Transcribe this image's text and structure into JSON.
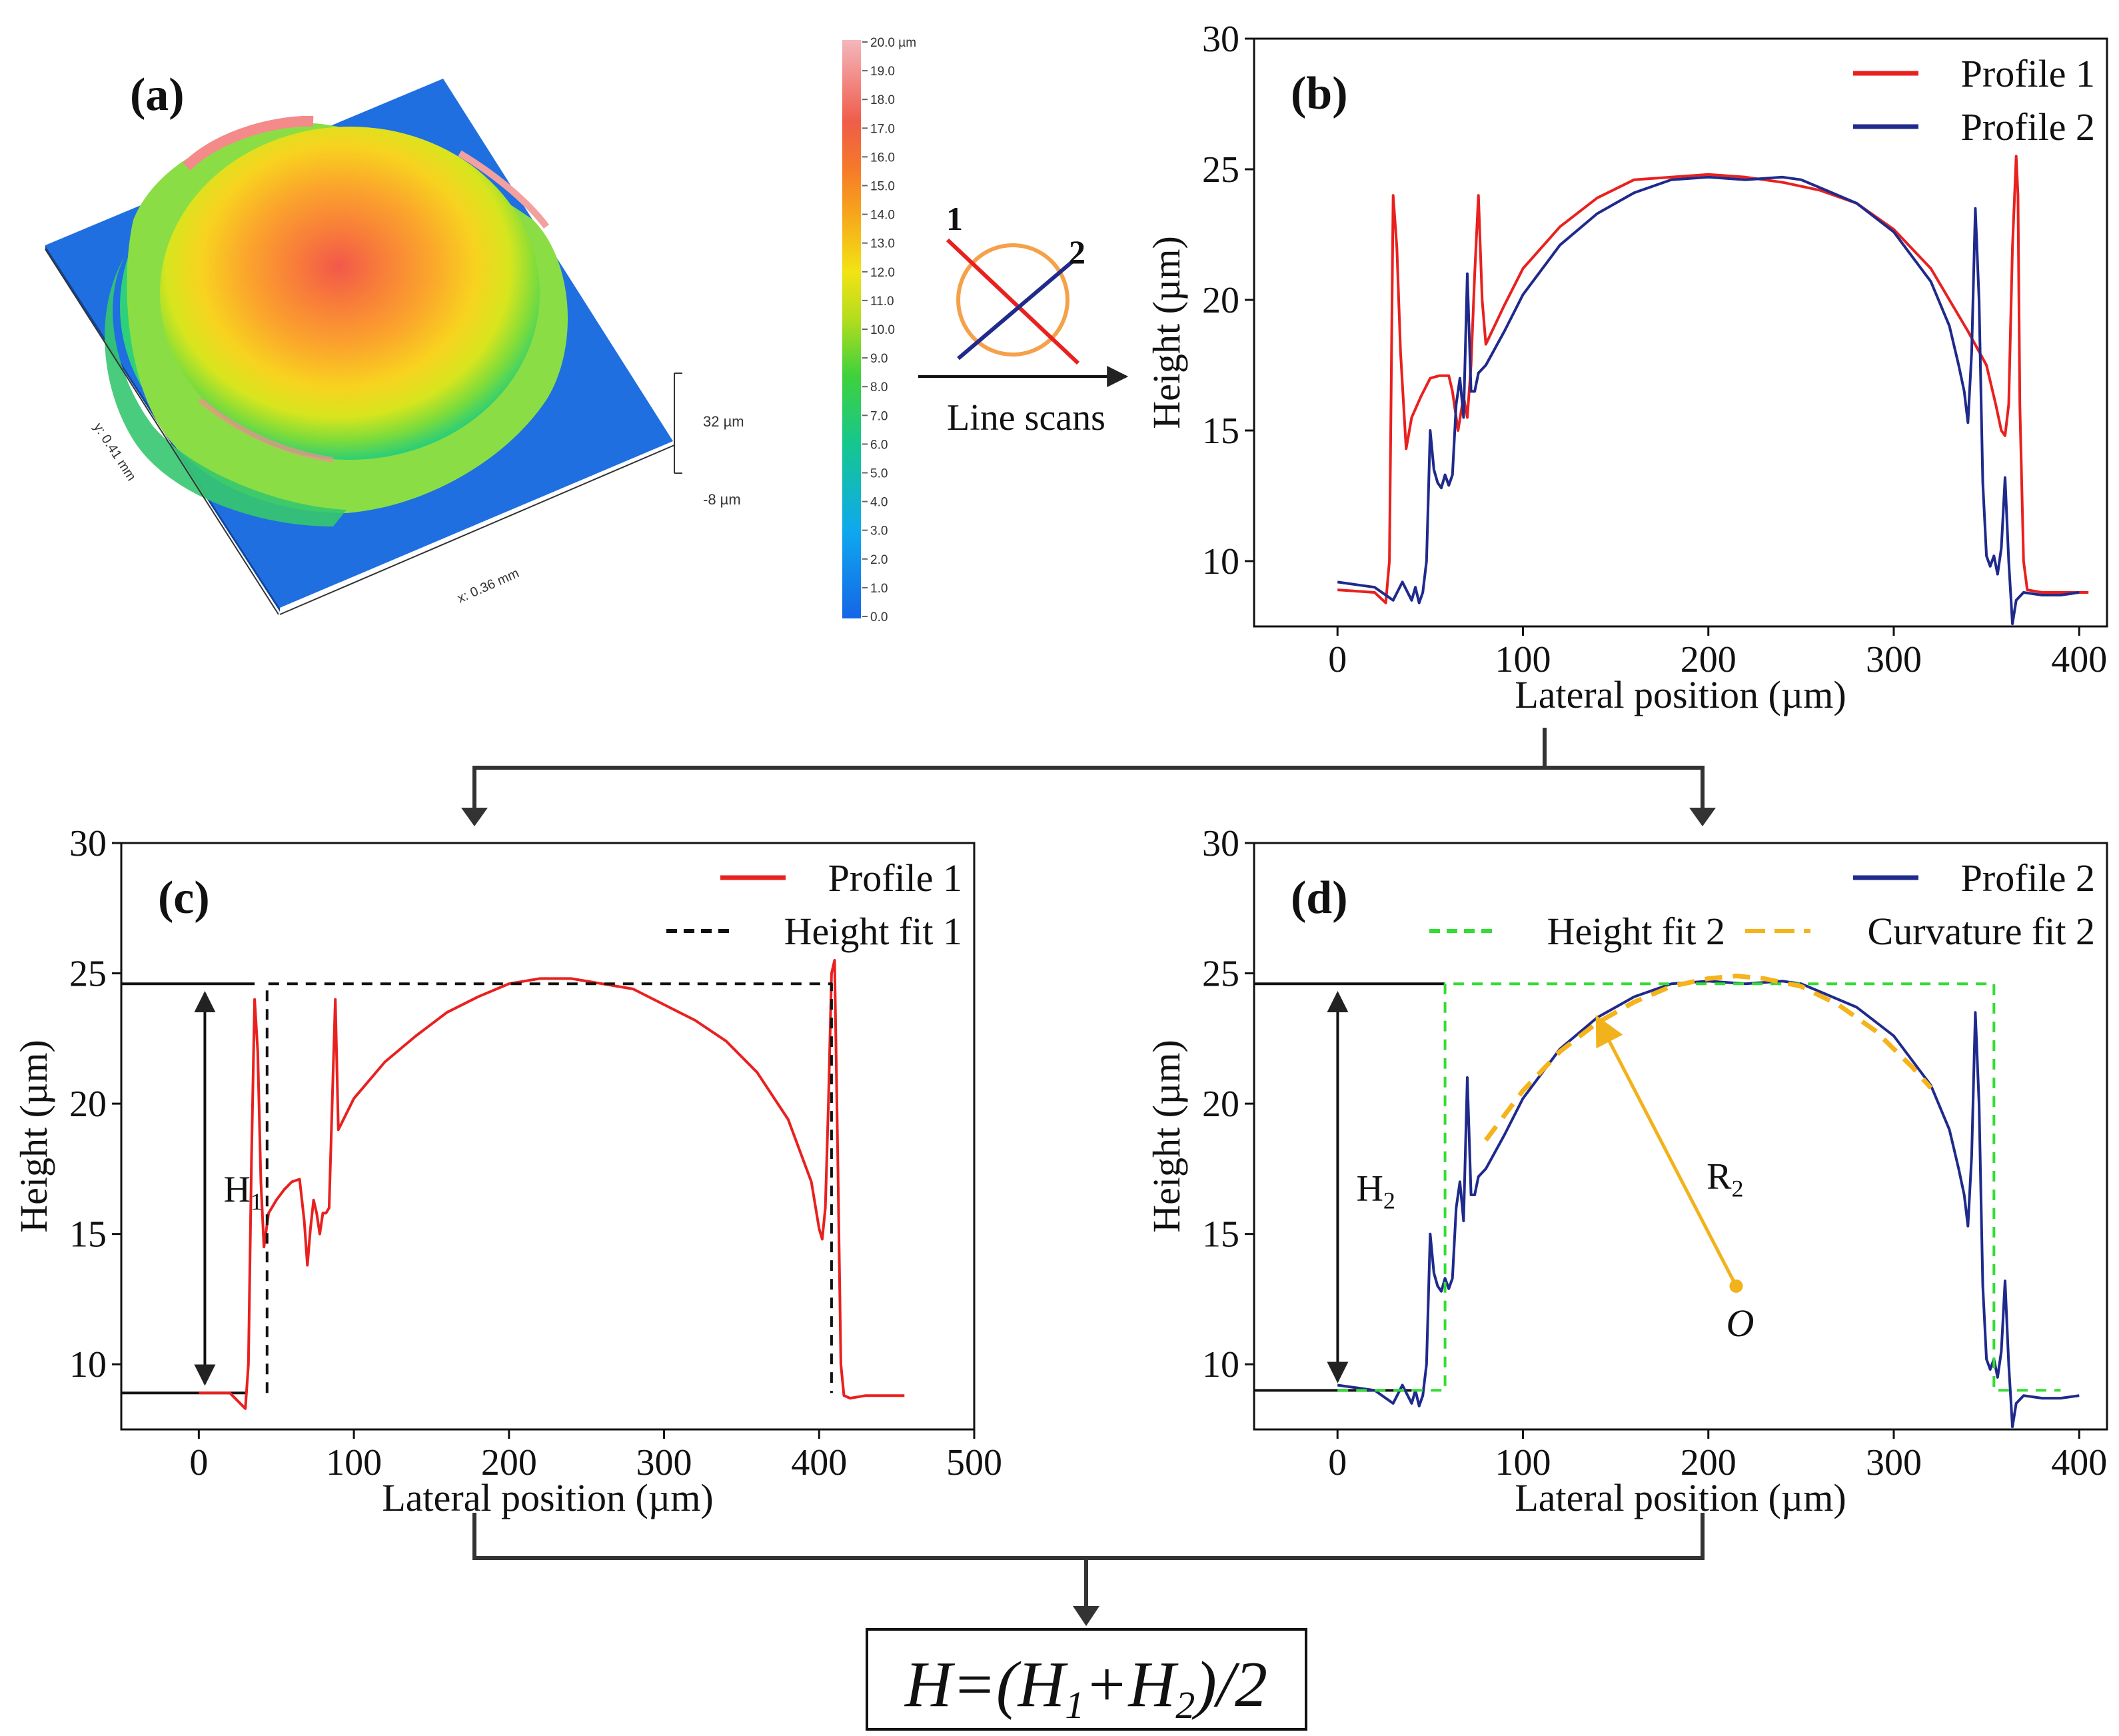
{
  "colors": {
    "profile1": "#e8211f",
    "profile2": "#1f2a8c",
    "height_fit1": "#111111",
    "height_fit2": "#33dd33",
    "curvature_fit2": "#f5b31c",
    "radius_arrow": "#f2b21b"
  },
  "panel_a": {
    "label": "(a)",
    "x_axis": "x: 0.36 mm",
    "y_axis": "y: 0.41 mm",
    "z_top": "32 µm",
    "z_bottom": "-8 µm",
    "colorbar_ticks": [
      "20.0 µm",
      "19.0",
      "18.0",
      "17.0",
      "16.0",
      "15.0",
      "14.0",
      "13.0",
      "12.0",
      "11.0",
      "10.0",
      "9.0",
      "8.0",
      "7.0",
      "6.0",
      "5.0",
      "4.0",
      "3.0",
      "2.0",
      "1.0",
      "0.0"
    ]
  },
  "scan_diagram": {
    "line1": "1",
    "line2": "2",
    "caption": "Line scans"
  },
  "formula": {
    "lhs": "H",
    "eq": "=(",
    "h1": "H",
    "h1_sub": "1",
    "plus": "+",
    "h2": "H",
    "h2_sub": "2",
    "tail": ")/2"
  },
  "chart_data": [
    {
      "panel": "(b)",
      "type": "line",
      "xlabel": "Lateral position (µm)",
      "ylabel": "Height (µm)",
      "xlim": [
        -45,
        415
      ],
      "ylim": [
        7.5,
        30
      ],
      "xticks": [
        0,
        100,
        200,
        300,
        400
      ],
      "yticks": [
        10,
        15,
        20,
        25,
        30
      ],
      "legend": "top-right",
      "series": [
        {
          "name": "Profile 1",
          "color": "profile1",
          "x": [
            0,
            20,
            26,
            28,
            30,
            32,
            34,
            37,
            40,
            45,
            50,
            55,
            60,
            62,
            65,
            68,
            70,
            72,
            74,
            76,
            78,
            80,
            90,
            100,
            120,
            140,
            160,
            180,
            200,
            220,
            240,
            260,
            280,
            300,
            320,
            340,
            350,
            355,
            358,
            360,
            362,
            364,
            366,
            367,
            368,
            370,
            372,
            380,
            390,
            405
          ],
          "y": [
            8.9,
            8.8,
            8.4,
            10,
            24,
            22,
            18,
            14.3,
            15.5,
            16.3,
            17,
            17.1,
            17.1,
            16.5,
            15,
            16.3,
            15.5,
            17.5,
            21,
            24,
            20,
            18.3,
            19.8,
            21.2,
            22.8,
            23.9,
            24.6,
            24.7,
            24.8,
            24.7,
            24.5,
            24.2,
            23.7,
            22.7,
            21.2,
            18.8,
            17.5,
            16,
            15,
            14.8,
            16,
            22,
            25.5,
            24,
            16,
            10,
            8.9,
            8.8,
            8.8,
            8.8
          ]
        },
        {
          "name": "Profile 2",
          "color": "profile2",
          "x": [
            0,
            10,
            20,
            30,
            35,
            40,
            42,
            44,
            46,
            48,
            50,
            52,
            54,
            56,
            58,
            60,
            62,
            64,
            66,
            68,
            70,
            72,
            74,
            76,
            80,
            90,
            100,
            120,
            140,
            160,
            180,
            200,
            220,
            240,
            250,
            260,
            280,
            300,
            320,
            330,
            335,
            338,
            340,
            342,
            344,
            346,
            348,
            350,
            352,
            354,
            356,
            358,
            360,
            362,
            364,
            366,
            370,
            380,
            390,
            400
          ],
          "y": [
            9.2,
            9.1,
            9.0,
            8.5,
            9.2,
            8.5,
            9.0,
            8.4,
            8.8,
            10,
            15,
            13.5,
            13,
            12.8,
            13.3,
            12.9,
            13.3,
            16,
            17,
            15.5,
            21,
            16.5,
            16.5,
            17.2,
            17.5,
            18.8,
            20.2,
            22.1,
            23.3,
            24.1,
            24.6,
            24.7,
            24.6,
            24.7,
            24.6,
            24.3,
            23.7,
            22.6,
            20.7,
            19,
            17.5,
            16.5,
            15.3,
            18,
            23.5,
            20,
            13,
            10.2,
            9.8,
            10.2,
            9.5,
            10.5,
            13.2,
            10,
            7.6,
            8.5,
            8.8,
            8.7,
            8.7,
            8.8
          ]
        }
      ]
    },
    {
      "panel": "(c)",
      "type": "line",
      "xlabel": "Lateral position (µm)",
      "ylabel": "Height (µm)",
      "xlim": [
        -50,
        500
      ],
      "ylim": [
        7.5,
        30
      ],
      "xticks": [
        0,
        100,
        200,
        300,
        400,
        500
      ],
      "yticks": [
        10,
        15,
        20,
        25,
        30
      ],
      "legend": "top-right",
      "series": [
        {
          "name": "Profile 1",
          "color": "profile1",
          "x": [
            0,
            20,
            30,
            32,
            34,
            36,
            38,
            40,
            42,
            45,
            50,
            55,
            60,
            65,
            68,
            70,
            72,
            74,
            76,
            78,
            80,
            82,
            84,
            86,
            88,
            90,
            100,
            120,
            140,
            160,
            180,
            200,
            220,
            240,
            260,
            280,
            300,
            320,
            340,
            360,
            380,
            395,
            400,
            402,
            404,
            406,
            408,
            410,
            412,
            414,
            416,
            420,
            430,
            440,
            455
          ],
          "y": [
            8.9,
            8.9,
            8.3,
            10,
            18,
            24,
            22,
            17,
            14.5,
            15.8,
            16.3,
            16.7,
            17,
            17.1,
            15.5,
            13.8,
            15.2,
            16.3,
            15.8,
            15,
            15.8,
            15.8,
            16,
            20,
            24,
            19,
            20.2,
            21.6,
            22.6,
            23.5,
            24.1,
            24.6,
            24.8,
            24.8,
            24.6,
            24.4,
            23.8,
            23.2,
            22.4,
            21.2,
            19.4,
            17,
            15.2,
            14.8,
            16,
            20,
            25,
            25.5,
            18,
            10,
            8.8,
            8.7,
            8.8,
            8.8,
            8.8
          ]
        },
        {
          "name": "Height fit 1",
          "color": "height_fit1",
          "dash": true,
          "x": [
            44,
            44,
            408,
            408
          ],
          "y": [
            8.9,
            24.6,
            24.6,
            8.9
          ]
        }
      ],
      "annotation": {
        "label": "H",
        "sub": "1",
        "baseline_y": 8.9,
        "top_y": 24.6
      }
    },
    {
      "panel": "(d)",
      "type": "line",
      "xlabel": "Lateral position (µm)",
      "ylabel": "Height (µm)",
      "xlim": [
        -45,
        415
      ],
      "ylim": [
        7.5,
        30
      ],
      "xticks": [
        0,
        100,
        200,
        300,
        400
      ],
      "yticks": [
        10,
        15,
        20,
        25,
        30
      ],
      "legend": "top-right",
      "series": [
        {
          "name": "Profile 2",
          "color": "profile2",
          "x": [
            0,
            10,
            20,
            30,
            35,
            40,
            42,
            44,
            46,
            48,
            50,
            52,
            54,
            56,
            58,
            60,
            62,
            64,
            66,
            68,
            70,
            72,
            74,
            76,
            80,
            90,
            100,
            120,
            140,
            160,
            180,
            200,
            220,
            240,
            250,
            260,
            280,
            300,
            320,
            330,
            335,
            338,
            340,
            342,
            344,
            346,
            348,
            350,
            352,
            354,
            356,
            358,
            360,
            362,
            364,
            366,
            370,
            380,
            390,
            400
          ],
          "y": [
            9.2,
            9.1,
            9.0,
            8.5,
            9.2,
            8.5,
            9.0,
            8.4,
            8.8,
            10,
            15,
            13.5,
            13,
            12.8,
            13.3,
            12.9,
            13.3,
            16,
            17,
            15.5,
            21,
            16.5,
            16.5,
            17.2,
            17.5,
            18.8,
            20.2,
            22.1,
            23.3,
            24.1,
            24.6,
            24.7,
            24.6,
            24.7,
            24.6,
            24.3,
            23.7,
            22.6,
            20.7,
            19,
            17.5,
            16.5,
            15.3,
            18,
            23.5,
            20,
            13,
            10.2,
            9.8,
            10.2,
            9.5,
            10.5,
            13.2,
            10,
            7.6,
            8.5,
            8.8,
            8.7,
            8.7,
            8.8
          ]
        },
        {
          "name": "Height fit 2",
          "color": "height_fit2",
          "dash": true,
          "x": [
            0,
            58,
            58,
            354,
            354,
            390
          ],
          "y": [
            9.0,
            9.0,
            24.6,
            24.6,
            9.0,
            9.0
          ]
        },
        {
          "name": "Curvature fit 2",
          "color": "curvature_fit2",
          "dash": true,
          "long_dash": true,
          "x": [
            80,
            100,
            120,
            140,
            160,
            180,
            200,
            215,
            230,
            250,
            270,
            290,
            310,
            320
          ],
          "y": [
            18.6,
            20.5,
            22,
            23.1,
            23.9,
            24.5,
            24.8,
            24.9,
            24.8,
            24.5,
            23.8,
            22.8,
            21.4,
            20.6
          ]
        }
      ],
      "annotation": {
        "label": "H",
        "sub": "2",
        "baseline_y": 9.0,
        "top_y": 24.6,
        "radius_label": "R",
        "radius_sub": "2",
        "center_label": "O",
        "center": [
          215,
          13
        ],
        "radius_end": [
          140,
          23.3
        ]
      }
    }
  ]
}
